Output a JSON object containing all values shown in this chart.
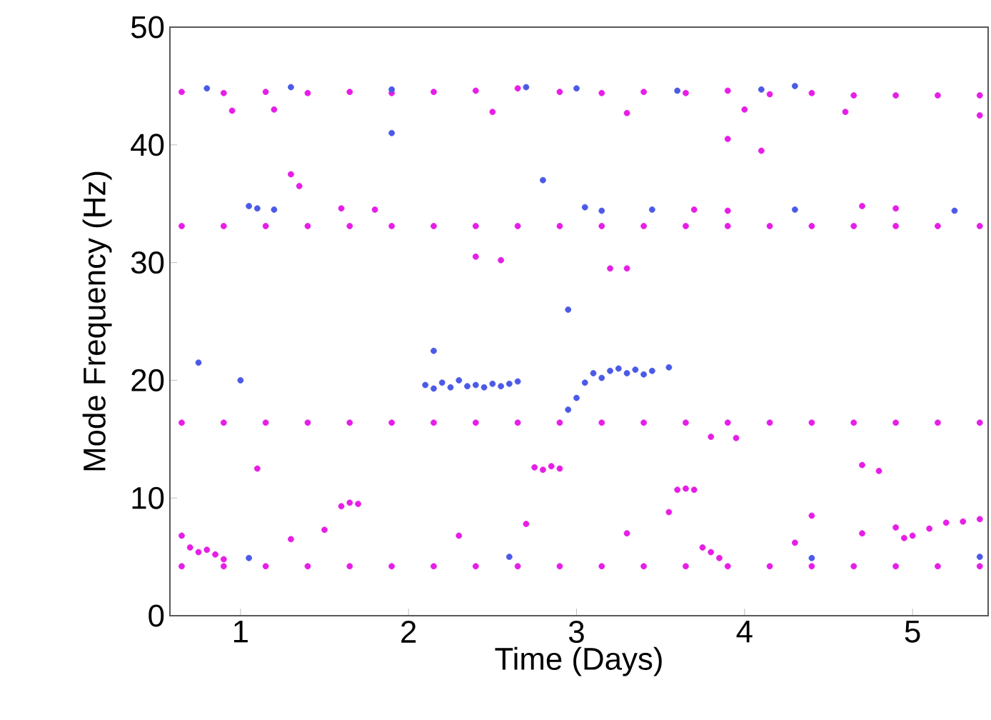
{
  "chart_data": {
    "type": "scatter",
    "xlabel": "Time (Days)",
    "ylabel": "Mode Frequency (Hz)",
    "xlim": [
      0.58,
      5.45
    ],
    "ylim": [
      0,
      50
    ],
    "xticks": [
      1,
      2,
      3,
      4,
      5
    ],
    "yticks": [
      0,
      10,
      20,
      30,
      40,
      50
    ],
    "series": [
      {
        "color": "#e61ee6",
        "x": [
          0.65,
          0.9,
          1.15,
          1.4,
          1.65,
          1.9,
          2.15,
          2.4,
          2.65,
          2.9,
          3.15,
          3.4,
          3.65,
          3.9,
          4.15,
          4.4,
          4.65,
          4.9,
          5.15,
          5.4,
          0.95,
          1.2,
          2.5,
          3.3,
          4.0,
          4.6,
          5.4,
          1.3,
          1.35,
          3.9,
          4.1,
          2.4,
          2.55,
          3.2,
          3.3,
          0.65,
          0.9,
          1.15,
          1.4,
          1.65,
          1.9,
          2.15,
          2.4,
          2.65,
          2.9,
          3.15,
          3.4,
          3.65,
          3.9,
          4.15,
          4.4,
          4.65,
          4.9,
          5.15,
          5.4,
          1.6,
          1.8,
          3.7,
          3.9,
          4.7,
          4.9,
          0.65,
          0.9,
          1.15,
          1.4,
          1.65,
          1.9,
          2.15,
          2.4,
          2.65,
          2.9,
          3.15,
          3.4,
          3.65,
          3.9,
          4.15,
          4.4,
          4.65,
          4.9,
          5.15,
          5.4,
          3.8,
          3.95,
          2.75,
          2.8,
          2.85,
          2.9,
          3.6,
          3.65,
          3.7,
          1.6,
          1.65,
          1.7,
          0.65,
          0.7,
          0.75,
          0.8,
          0.85,
          0.9,
          4.9,
          4.95,
          5.0,
          5.1,
          5.2,
          5.3,
          5.4,
          3.75,
          3.8,
          3.85,
          0.65,
          0.9,
          1.15,
          1.4,
          1.65,
          1.9,
          2.15,
          2.4,
          2.65,
          2.9,
          3.15,
          3.4,
          3.65,
          3.9,
          4.15,
          4.4,
          4.65,
          4.9,
          5.15,
          5.4,
          1.3,
          1.5,
          2.3,
          2.7,
          3.3,
          4.3,
          4.7,
          4.4,
          4.7,
          4.8,
          1.1,
          3.55
        ],
        "values": [
          44.5,
          44.4,
          44.5,
          44.4,
          44.5,
          44.4,
          44.5,
          44.6,
          44.8,
          44.5,
          44.4,
          44.5,
          44.4,
          44.6,
          44.3,
          44.4,
          44.2,
          44.2,
          44.2,
          44.2,
          42.9,
          43.0,
          42.8,
          42.7,
          43.0,
          42.8,
          42.5,
          37.5,
          36.5,
          40.5,
          39.5,
          30.5,
          30.2,
          29.5,
          29.5,
          33.1,
          33.1,
          33.1,
          33.1,
          33.1,
          33.1,
          33.1,
          33.1,
          33.1,
          33.1,
          33.1,
          33.1,
          33.1,
          33.1,
          33.1,
          33.1,
          33.1,
          33.1,
          33.1,
          33.1,
          34.6,
          34.5,
          34.5,
          34.4,
          34.8,
          34.6,
          16.4,
          16.4,
          16.4,
          16.4,
          16.4,
          16.4,
          16.4,
          16.4,
          16.4,
          16.4,
          16.4,
          16.4,
          16.4,
          16.4,
          16.4,
          16.4,
          16.4,
          16.4,
          16.4,
          16.4,
          15.2,
          15.1,
          12.6,
          12.4,
          12.7,
          12.5,
          10.7,
          10.8,
          10.7,
          9.3,
          9.6,
          9.5,
          6.8,
          5.8,
          5.4,
          5.6,
          5.2,
          4.8,
          7.5,
          6.6,
          6.8,
          7.4,
          7.9,
          8.0,
          8.2,
          5.8,
          5.4,
          4.9,
          4.2,
          4.2,
          4.2,
          4.2,
          4.2,
          4.2,
          4.2,
          4.2,
          4.2,
          4.2,
          4.2,
          4.2,
          4.2,
          4.2,
          4.2,
          4.2,
          4.2,
          4.2,
          4.2,
          4.2,
          6.5,
          7.3,
          6.8,
          7.8,
          7.0,
          6.2,
          7.0,
          8.5,
          12.8,
          12.3,
          12.5,
          8.8
        ]
      },
      {
        "color": "#4b5ae6",
        "x": [
          0.8,
          1.3,
          1.9,
          2.7,
          3.0,
          3.6,
          4.1,
          4.3,
          1.05,
          1.1,
          1.2,
          3.05,
          3.15,
          3.45,
          4.3,
          5.25,
          2.1,
          2.15,
          2.2,
          2.25,
          2.3,
          2.35,
          2.4,
          2.45,
          2.5,
          2.55,
          2.6,
          2.65,
          2.95,
          3.0,
          3.05,
          3.1,
          3.15,
          3.2,
          3.25,
          3.3,
          3.35,
          3.4,
          3.45,
          3.55,
          0.75,
          1.0,
          2.95,
          2.8,
          1.9,
          1.05,
          2.6,
          4.4,
          5.4,
          2.15
        ],
        "values": [
          44.8,
          44.9,
          44.7,
          44.9,
          44.8,
          44.6,
          44.7,
          45.0,
          34.8,
          34.6,
          34.5,
          34.7,
          34.4,
          34.5,
          34.5,
          34.4,
          19.6,
          19.3,
          19.8,
          19.4,
          20.0,
          19.5,
          19.6,
          19.4,
          19.7,
          19.5,
          19.7,
          19.9,
          17.5,
          18.5,
          19.8,
          20.6,
          20.2,
          20.8,
          21.0,
          20.6,
          20.9,
          20.5,
          20.8,
          21.1,
          21.5,
          20.0,
          26.0,
          37.0,
          41.0,
          4.9,
          5.0,
          4.9,
          5.0,
          22.5
        ]
      }
    ]
  }
}
